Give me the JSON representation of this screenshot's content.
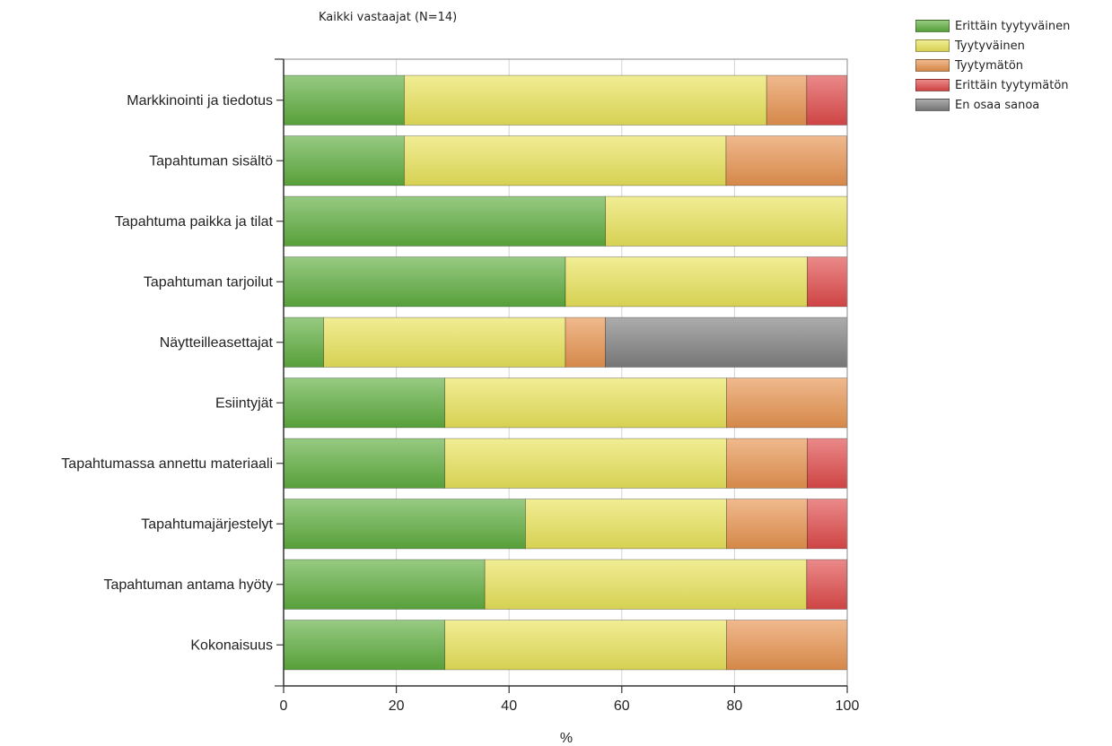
{
  "chart_data": {
    "type": "bar",
    "orientation": "horizontal",
    "stacked": true,
    "title": "Kaikki vastaajat (N=14)",
    "xlabel": "%",
    "ylabel": "",
    "xlim": [
      0,
      100
    ],
    "xticks": [
      "0",
      "20",
      "40",
      "60",
      "80",
      "100"
    ],
    "grid": true,
    "legend_position": "top-right",
    "categories": [
      "Markkinointi ja tiedotus",
      "Tapahtuman sisältö",
      "Tapahtuma paikka ja tilat",
      "Tapahtuman tarjoilut",
      "Näytteilleasettajat",
      "Esiintyjät",
      "Tapahtumassa annettu materiaali",
      "Tapahtumajärjestelyt",
      "Tapahtuman antama hyöty",
      "Kokonaisuus"
    ],
    "series": [
      {
        "name": "Erittäin tyytyväinen",
        "color": "#5fae3f",
        "values": [
          21.4,
          21.4,
          57.1,
          50.0,
          7.1,
          28.6,
          28.6,
          42.9,
          35.7,
          28.6
        ]
      },
      {
        "name": "Tyytyväinen",
        "color": "#e9e35a",
        "values": [
          64.3,
          57.1,
          42.9,
          42.9,
          42.9,
          50.0,
          50.0,
          35.7,
          57.1,
          50.0
        ]
      },
      {
        "name": "Tyytymätön",
        "color": "#e8944f",
        "values": [
          7.1,
          21.4,
          0,
          0,
          7.1,
          21.4,
          14.3,
          14.3,
          0,
          21.4
        ]
      },
      {
        "name": "Erittäin tyytymätön",
        "color": "#e04a4a",
        "values": [
          7.1,
          0,
          0,
          7.1,
          0,
          0,
          7.1,
          7.1,
          7.1,
          0
        ]
      },
      {
        "name": "En osaa sanoa",
        "color": "#7f7f7f",
        "values": [
          0,
          0,
          0,
          0,
          42.9,
          0,
          0,
          0,
          0,
          0
        ]
      }
    ]
  }
}
